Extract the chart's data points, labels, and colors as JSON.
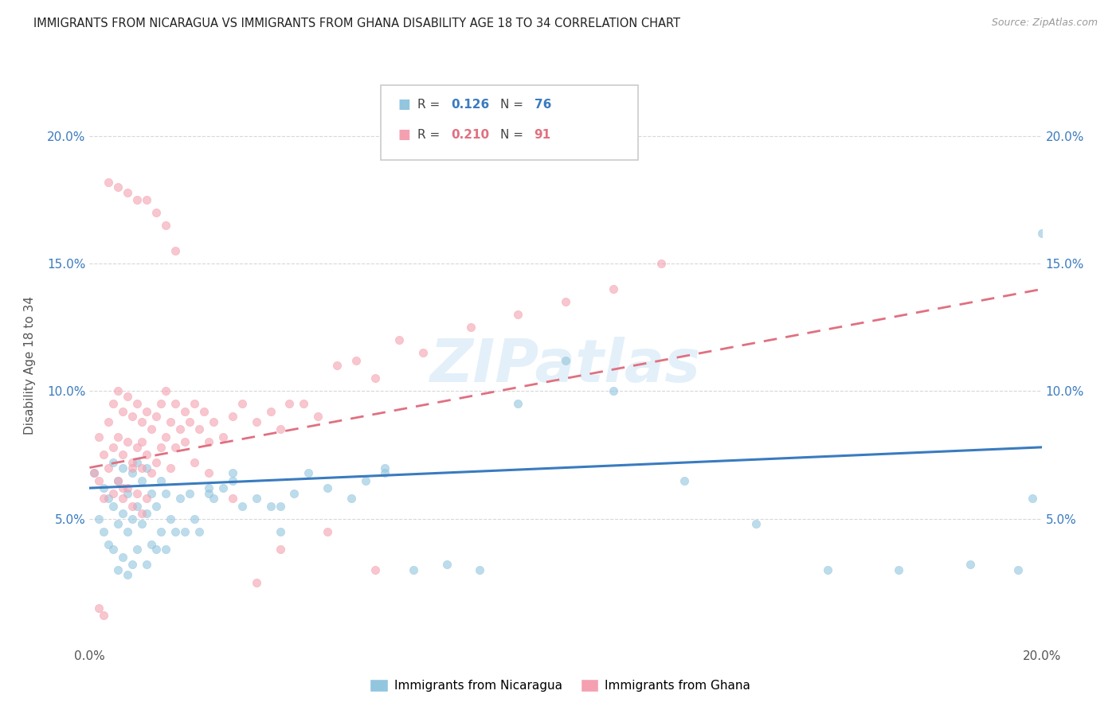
{
  "title": "IMMIGRANTS FROM NICARAGUA VS IMMIGRANTS FROM GHANA DISABILITY AGE 18 TO 34 CORRELATION CHART",
  "source": "Source: ZipAtlas.com",
  "ylabel": "Disability Age 18 to 34",
  "watermark": "ZIPatlas",
  "series1_name": "Immigrants from Nicaragua",
  "series2_name": "Immigrants from Ghana",
  "series1_color": "#92c5de",
  "series2_color": "#f4a0b0",
  "series1_R": 0.126,
  "series1_N": 76,
  "series2_R": 0.21,
  "series2_N": 91,
  "series1_line_color": "#3a7bbf",
  "series2_line_color": "#e07080",
  "xlim": [
    0.0,
    0.2
  ],
  "ylim": [
    0.0,
    0.22
  ],
  "yticks": [
    0.05,
    0.1,
    0.15,
    0.2
  ],
  "background_color": "#ffffff",
  "grid_color": "#d8d8d8",
  "title_fontsize": 11,
  "source_fontsize": 9,
  "series1_x": [
    0.001,
    0.002,
    0.003,
    0.003,
    0.004,
    0.004,
    0.005,
    0.005,
    0.005,
    0.006,
    0.006,
    0.006,
    0.007,
    0.007,
    0.007,
    0.008,
    0.008,
    0.008,
    0.009,
    0.009,
    0.009,
    0.01,
    0.01,
    0.01,
    0.011,
    0.011,
    0.012,
    0.012,
    0.012,
    0.013,
    0.013,
    0.014,
    0.014,
    0.015,
    0.015,
    0.016,
    0.016,
    0.017,
    0.018,
    0.019,
    0.02,
    0.021,
    0.022,
    0.023,
    0.025,
    0.026,
    0.028,
    0.03,
    0.032,
    0.035,
    0.038,
    0.04,
    0.043,
    0.046,
    0.05,
    0.055,
    0.058,
    0.062,
    0.068,
    0.075,
    0.082,
    0.09,
    0.1,
    0.11,
    0.125,
    0.14,
    0.155,
    0.17,
    0.185,
    0.195,
    0.198,
    0.2,
    0.062,
    0.04,
    0.03,
    0.025
  ],
  "series1_y": [
    0.068,
    0.05,
    0.062,
    0.045,
    0.058,
    0.04,
    0.072,
    0.055,
    0.038,
    0.065,
    0.048,
    0.03,
    0.07,
    0.052,
    0.035,
    0.06,
    0.045,
    0.028,
    0.068,
    0.05,
    0.032,
    0.072,
    0.055,
    0.038,
    0.065,
    0.048,
    0.07,
    0.052,
    0.032,
    0.06,
    0.04,
    0.055,
    0.038,
    0.065,
    0.045,
    0.06,
    0.038,
    0.05,
    0.045,
    0.058,
    0.045,
    0.06,
    0.05,
    0.045,
    0.06,
    0.058,
    0.062,
    0.068,
    0.055,
    0.058,
    0.055,
    0.045,
    0.06,
    0.068,
    0.062,
    0.058,
    0.065,
    0.068,
    0.03,
    0.032,
    0.03,
    0.095,
    0.112,
    0.1,
    0.065,
    0.048,
    0.03,
    0.03,
    0.032,
    0.03,
    0.058,
    0.162,
    0.07,
    0.055,
    0.065,
    0.062
  ],
  "series2_x": [
    0.001,
    0.002,
    0.002,
    0.003,
    0.003,
    0.004,
    0.004,
    0.005,
    0.005,
    0.005,
    0.006,
    0.006,
    0.006,
    0.007,
    0.007,
    0.007,
    0.008,
    0.008,
    0.008,
    0.009,
    0.009,
    0.009,
    0.01,
    0.01,
    0.01,
    0.011,
    0.011,
    0.011,
    0.012,
    0.012,
    0.012,
    0.013,
    0.013,
    0.014,
    0.014,
    0.015,
    0.015,
    0.016,
    0.016,
    0.017,
    0.017,
    0.018,
    0.018,
    0.019,
    0.02,
    0.021,
    0.022,
    0.023,
    0.024,
    0.025,
    0.026,
    0.028,
    0.03,
    0.032,
    0.035,
    0.038,
    0.04,
    0.042,
    0.045,
    0.048,
    0.052,
    0.056,
    0.06,
    0.065,
    0.07,
    0.08,
    0.09,
    0.1,
    0.11,
    0.12,
    0.06,
    0.05,
    0.04,
    0.035,
    0.03,
    0.025,
    0.022,
    0.02,
    0.018,
    0.016,
    0.014,
    0.012,
    0.01,
    0.008,
    0.006,
    0.004,
    0.003,
    0.002,
    0.007,
    0.009,
    0.011
  ],
  "series2_y": [
    0.068,
    0.082,
    0.065,
    0.075,
    0.058,
    0.088,
    0.07,
    0.095,
    0.078,
    0.06,
    0.1,
    0.082,
    0.065,
    0.092,
    0.075,
    0.058,
    0.098,
    0.08,
    0.062,
    0.09,
    0.072,
    0.055,
    0.095,
    0.078,
    0.06,
    0.088,
    0.07,
    0.052,
    0.092,
    0.075,
    0.058,
    0.085,
    0.068,
    0.09,
    0.072,
    0.095,
    0.078,
    0.1,
    0.082,
    0.088,
    0.07,
    0.095,
    0.078,
    0.085,
    0.092,
    0.088,
    0.095,
    0.085,
    0.092,
    0.08,
    0.088,
    0.082,
    0.09,
    0.095,
    0.088,
    0.092,
    0.085,
    0.095,
    0.095,
    0.09,
    0.11,
    0.112,
    0.105,
    0.12,
    0.115,
    0.125,
    0.13,
    0.135,
    0.14,
    0.15,
    0.03,
    0.045,
    0.038,
    0.025,
    0.058,
    0.068,
    0.072,
    0.08,
    0.155,
    0.165,
    0.17,
    0.175,
    0.175,
    0.178,
    0.18,
    0.182,
    0.012,
    0.015,
    0.062,
    0.07,
    0.08
  ]
}
